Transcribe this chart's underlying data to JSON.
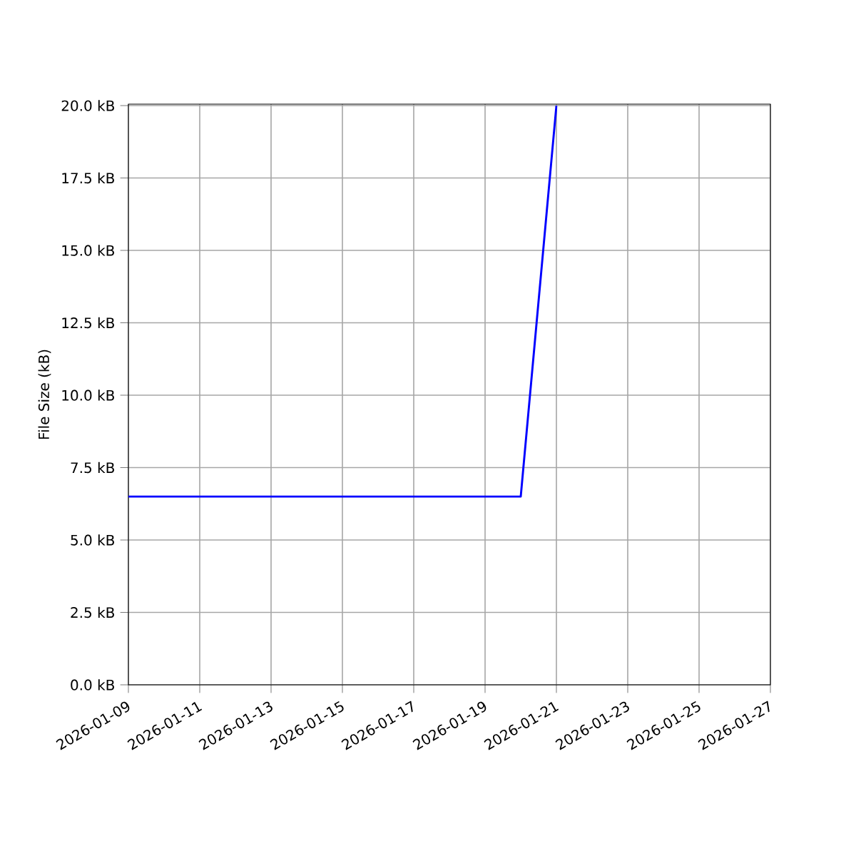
{
  "chart_data": {
    "type": "line",
    "ylabel": "File Size (kB)",
    "x": [
      "2026-01-09",
      "2026-01-20",
      "2026-01-21"
    ],
    "series": [
      {
        "color": "#0000ff",
        "values": [
          6.5,
          6.5,
          20.0
        ]
      }
    ],
    "xlim": [
      "2026-01-09",
      "2026-01-27"
    ],
    "xticks": [
      "2026-01-09",
      "2026-01-11",
      "2026-01-13",
      "2026-01-15",
      "2026-01-17",
      "2026-01-19",
      "2026-01-21",
      "2026-01-23",
      "2026-01-25",
      "2026-01-27"
    ],
    "ylim": [
      0,
      20.05
    ],
    "yticks": [
      {
        "value": 0,
        "label": "0.0 kB"
      },
      {
        "value": 2.5,
        "label": "2.5 kB"
      },
      {
        "value": 5,
        "label": "5.0 kB"
      },
      {
        "value": 7.5,
        "label": "7.5 kB"
      },
      {
        "value": 10,
        "label": "10.0 kB"
      },
      {
        "value": 12.5,
        "label": "12.5 kB"
      },
      {
        "value": 15,
        "label": "15.0 kB"
      },
      {
        "value": 17.5,
        "label": "17.5 kB"
      },
      {
        "value": 20,
        "label": "20.0 kB"
      }
    ],
    "grid": true
  }
}
